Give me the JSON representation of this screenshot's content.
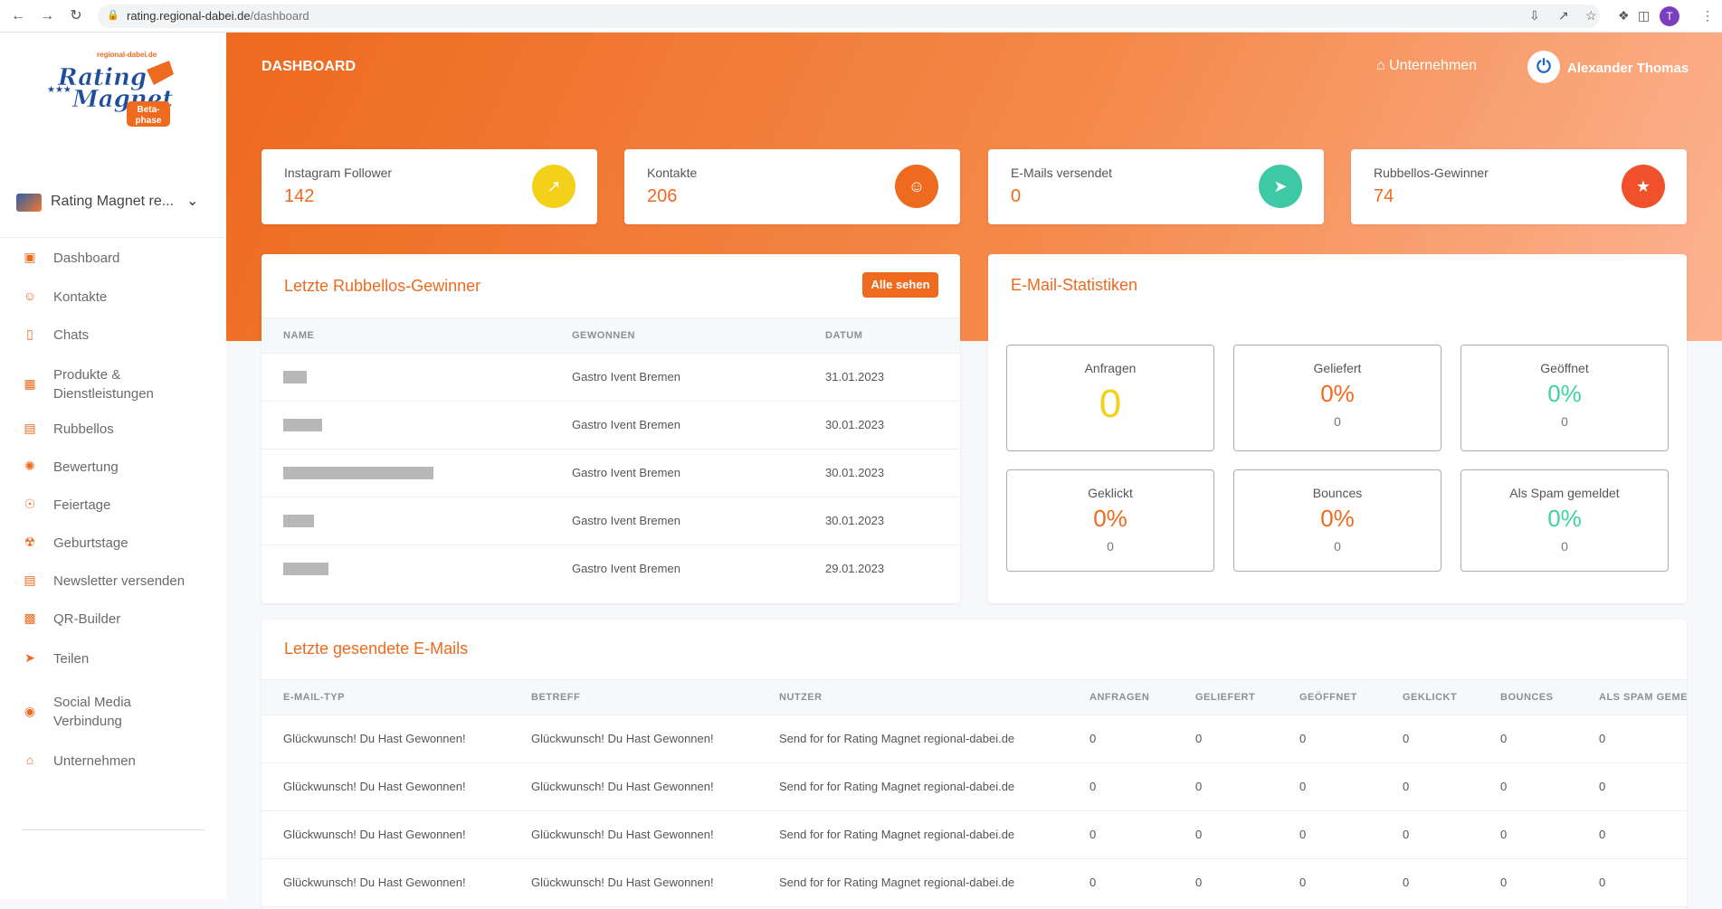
{
  "browser": {
    "url_host": "rating.regional-dabei.de",
    "url_path": "/dashboard",
    "profile_initial": "T"
  },
  "sidebar": {
    "logo": {
      "top_text": "regional-dabei.de",
      "line1": "Rating",
      "line2": "Magnet",
      "badge_line1": "Beta-",
      "badge_line2": "phase"
    },
    "company_selector": "Rating Magnet re...",
    "items": [
      {
        "label": "Dashboard",
        "icon": "monitor-icon"
      },
      {
        "label": "Kontakte",
        "icon": "users-icon"
      },
      {
        "label": "Chats",
        "icon": "chat-icon"
      },
      {
        "label": "Produkte & Dienstleistungen",
        "icon": "product-icon"
      },
      {
        "label": "Rubbellos",
        "icon": "ticket-icon"
      },
      {
        "label": "Bewertung",
        "icon": "rating-icon"
      },
      {
        "label": "Feiertage",
        "icon": "holiday-icon"
      },
      {
        "label": "Geburtstage",
        "icon": "cake-icon"
      },
      {
        "label": "Newsletter versenden",
        "icon": "newsletter-icon"
      },
      {
        "label": "QR-Builder",
        "icon": "qr-icon"
      },
      {
        "label": "Teilen",
        "icon": "share-icon"
      },
      {
        "label": "Social Media Verbindung",
        "icon": "instagram-icon"
      },
      {
        "label": "Unternehmen",
        "icon": "store-icon"
      }
    ]
  },
  "header": {
    "title": "DASHBOARD",
    "company_link": "Unternehmen",
    "user_name": "Alexander Thomas"
  },
  "stats": [
    {
      "label": "Instagram Follower",
      "value": "142",
      "icon": "chart-icon",
      "color": "#f3d01a"
    },
    {
      "label": "Kontakte",
      "value": "206",
      "icon": "users-icon",
      "color": "#ee6a1f"
    },
    {
      "label": "E-Mails versendet",
      "value": "0",
      "icon": "paper-plane-icon",
      "color": "#3ec9a6"
    },
    {
      "label": "Rubbellos-Gewinner",
      "value": "74",
      "icon": "trophy-icon",
      "color": "#f1512a"
    }
  ],
  "winners": {
    "title": "Letzte Rubbellos-Gewinner",
    "button": "Alle sehen",
    "columns": [
      "NAME",
      "GEWONNEN",
      "DATUM"
    ],
    "rows": [
      {
        "won": "Gastro Ivent Bremen",
        "date": "31.01.2023"
      },
      {
        "won": "Gastro Ivent Bremen",
        "date": "30.01.2023"
      },
      {
        "won": "Gastro Ivent Bremen",
        "date": "30.01.2023"
      },
      {
        "won": "Gastro Ivent Bremen",
        "date": "30.01.2023"
      },
      {
        "won": "Gastro Ivent Bremen",
        "date": "29.01.2023"
      }
    ]
  },
  "email_stats": {
    "title": "E-Mail-Statistiken",
    "boxes": [
      {
        "label": "Anfragen",
        "value": "0",
        "count": "",
        "color": "#f3d01a"
      },
      {
        "label": "Geliefert",
        "value": "0%",
        "count": "0",
        "color": "#ee6a1f"
      },
      {
        "label": "Geöffnet",
        "value": "0%",
        "count": "0",
        "color": "#3ed39f"
      },
      {
        "label": "Geklickt",
        "value": "0%",
        "count": "0",
        "color": "#ee6a1f"
      },
      {
        "label": "Bounces",
        "value": "0%",
        "count": "0",
        "color": "#ee6a1f"
      },
      {
        "label": "Als Spam gemeldet",
        "value": "0%",
        "count": "0",
        "color": "#3ed39f"
      }
    ]
  },
  "sent_emails": {
    "title": "Letzte gesendete E-Mails",
    "columns": [
      "E-MAIL-TYP",
      "BETREFF",
      "NUTZER",
      "ANFRAGEN",
      "GELIEFERT",
      "GEÖFFNET",
      "GEKLICKT",
      "BOUNCES",
      "ALS SPAM GEMELDET"
    ],
    "rows": [
      {
        "type": "Glückwunsch! Du Hast Gewonnen!",
        "subject": "Glückwunsch! Du Hast Gewonnen!",
        "user": "Send for for Rating Magnet regional-dabei.de",
        "c1": "0",
        "c2": "0",
        "c3": "0",
        "c4": "0",
        "c5": "0",
        "c6": "0"
      },
      {
        "type": "Glückwunsch! Du Hast Gewonnen!",
        "subject": "Glückwunsch! Du Hast Gewonnen!",
        "user": "Send for for Rating Magnet regional-dabei.de",
        "c1": "0",
        "c2": "0",
        "c3": "0",
        "c4": "0",
        "c5": "0",
        "c6": "0"
      },
      {
        "type": "Glückwunsch! Du Hast Gewonnen!",
        "subject": "Glückwunsch! Du Hast Gewonnen!",
        "user": "Send for for Rating Magnet regional-dabei.de",
        "c1": "0",
        "c2": "0",
        "c3": "0",
        "c4": "0",
        "c5": "0",
        "c6": "0"
      },
      {
        "type": "Glückwunsch! Du Hast Gewonnen!",
        "subject": "Glückwunsch! Du Hast Gewonnen!",
        "user": "Send for for Rating Magnet regional-dabei.de",
        "c1": "0",
        "c2": "0",
        "c3": "0",
        "c4": "0",
        "c5": "0",
        "c6": "0"
      }
    ]
  }
}
